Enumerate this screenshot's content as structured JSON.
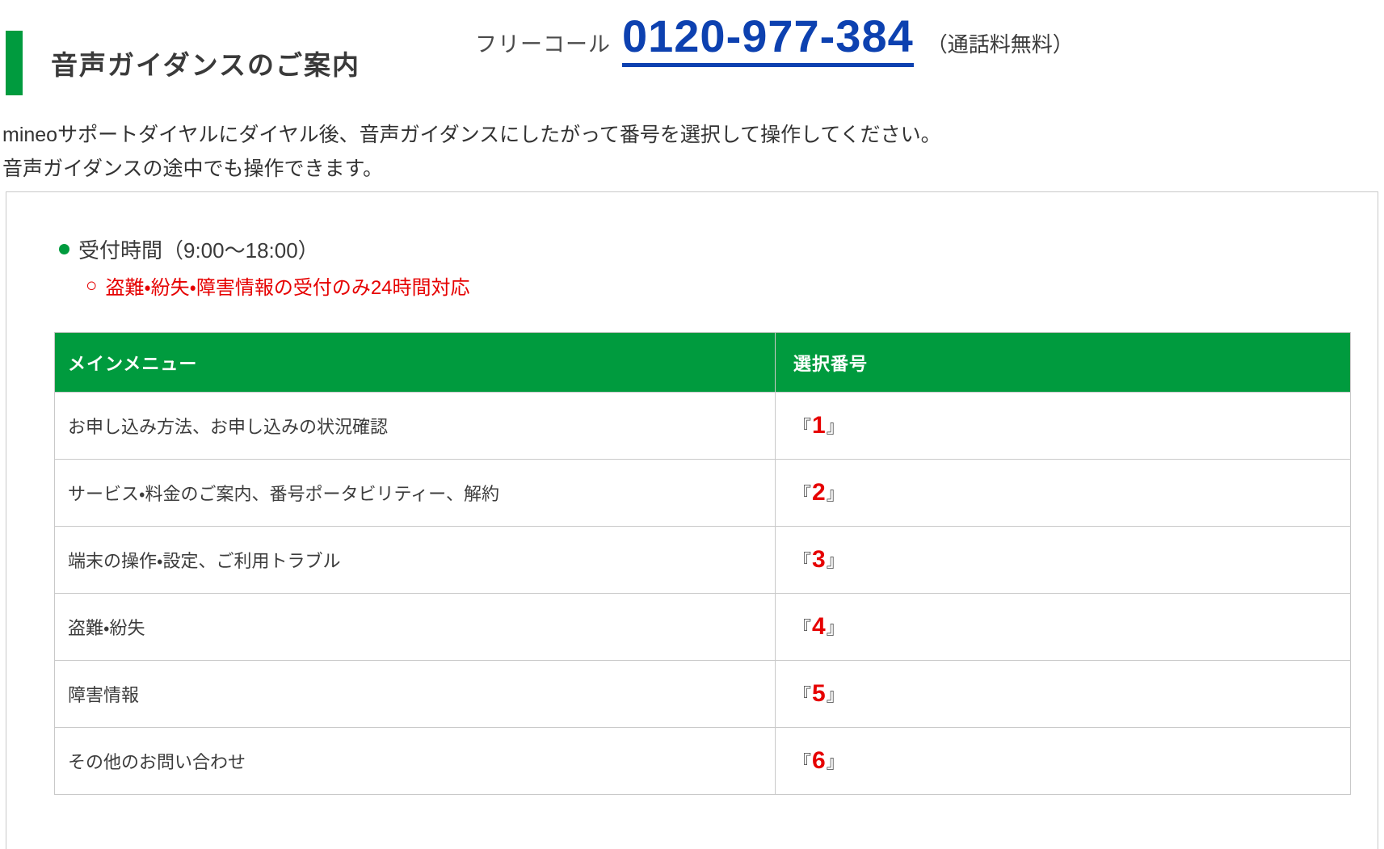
{
  "header": {
    "title": "音声ガイダンスのご案内",
    "phone_label": "フリーコール",
    "phone_number": "0120-977-384",
    "phone_note": "（通話料無料）"
  },
  "intro": {
    "line1": "mineoサポートダイヤルにダイヤル後、音声ガイダンスにしたがって番号を選択して操作してください。",
    "line2": "音声ガイダンスの途中でも操作できます。"
  },
  "info_box": {
    "hours_label": "受付時間（9:00〜18:00）",
    "note_marker": "○",
    "note_text": "盗難・紛失・障害情報の受付のみ24時間対応",
    "table": {
      "header": {
        "menu": "メインメニュー",
        "number": "選択番号"
      },
      "bracket_open": "『",
      "bracket_close": "』",
      "rows": [
        {
          "menu": "お申し込み方法、お申し込みの状況確認",
          "number": "1"
        },
        {
          "menu": "サービス・料金のご案内、番号ポータビリティー、解約",
          "number": "2"
        },
        {
          "menu": "端末の操作・設定、ご利用トラブル",
          "number": "3"
        },
        {
          "menu": "盗難・紛失",
          "number": "4"
        },
        {
          "menu": "障害情報",
          "number": "5"
        },
        {
          "menu": "その他のお問い合わせ",
          "number": "6"
        }
      ]
    }
  },
  "colors": {
    "brand_green": "#009b3e",
    "link_blue": "#0d41b0",
    "alert_red": "#e60000",
    "text_dark": "#333333",
    "border_gray": "#c9c9c9"
  }
}
